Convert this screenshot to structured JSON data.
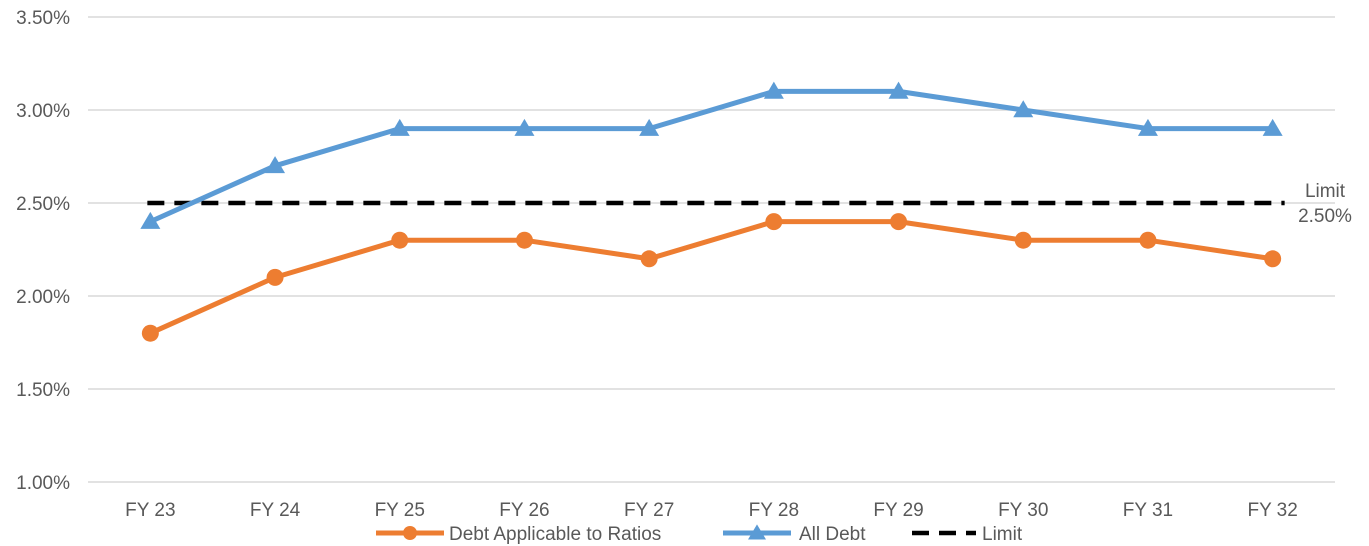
{
  "chart_data": {
    "type": "line",
    "categories": [
      "FY 23",
      "FY 24",
      "FY 25",
      "FY 26",
      "FY 27",
      "FY 28",
      "FY 29",
      "FY 30",
      "FY 31",
      "FY 32"
    ],
    "series": [
      {
        "name": "Debt Applicable to Ratios",
        "color": "#ED7D31",
        "marker": "circle",
        "values": [
          1.8,
          2.1,
          2.3,
          2.3,
          2.2,
          2.4,
          2.4,
          2.3,
          2.3,
          2.2
        ]
      },
      {
        "name": "All Debt",
        "color": "#5B9BD5",
        "marker": "triangle",
        "values": [
          2.4,
          2.7,
          2.9,
          2.9,
          2.9,
          3.1,
          3.1,
          3.0,
          2.9,
          2.9
        ]
      },
      {
        "name": "Limit",
        "color": "#000000",
        "style": "dashed",
        "values": [
          2.5,
          2.5,
          2.5,
          2.5,
          2.5,
          2.5,
          2.5,
          2.5,
          2.5,
          2.5
        ]
      }
    ],
    "ylim": [
      1.0,
      3.5
    ],
    "yticks": [
      "1.00%",
      "1.50%",
      "2.00%",
      "2.50%",
      "3.00%",
      "3.50%"
    ],
    "ytick_values": [
      1.0,
      1.5,
      2.0,
      2.5,
      3.0,
      3.5
    ],
    "grid": "horizontal",
    "legend_position": "bottom",
    "annotation": {
      "line1": "Limit",
      "line2": "2.50%"
    }
  }
}
